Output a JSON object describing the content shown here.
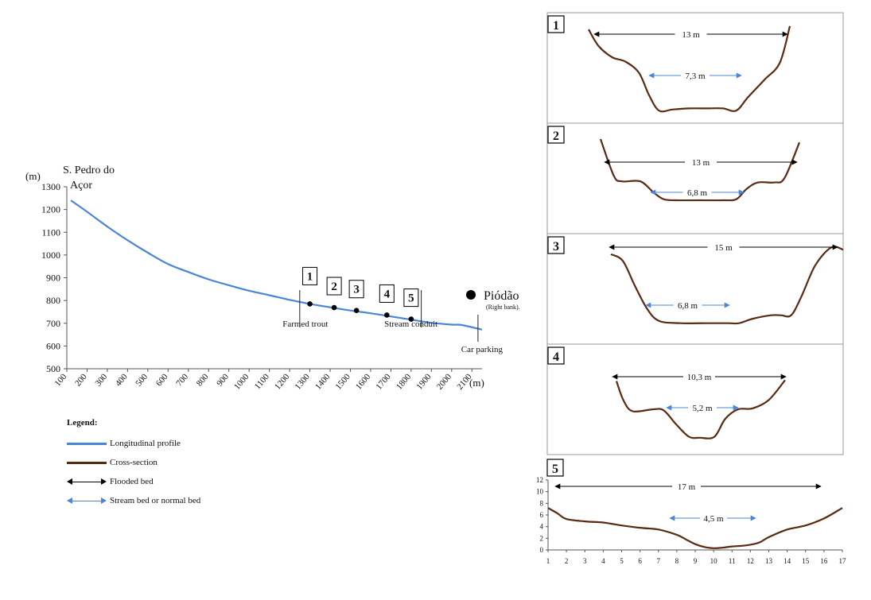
{
  "chart_data": [
    {
      "type": "line",
      "name": "longitudinal-profile",
      "y_unit_label": "(m)",
      "x_unit_label": "(m)",
      "start_label": "S. Pedro do Açor",
      "end_label": "Piódão",
      "end_sublabel": "(Right bank).",
      "ylim": [
        500,
        1300
      ],
      "xlim": [
        100,
        2150
      ],
      "y_ticks": [
        500,
        600,
        700,
        800,
        900,
        1000,
        1100,
        1200,
        1300
      ],
      "x_ticks": [
        100,
        200,
        300,
        400,
        500,
        600,
        700,
        800,
        900,
        1000,
        1100,
        1200,
        1300,
        1400,
        1500,
        1600,
        1700,
        1800,
        1900,
        2000,
        2100
      ],
      "series": [
        {
          "name": "Longitudinal profile",
          "color": "#4a86d6",
          "x": [
            120,
            200,
            300,
            400,
            500,
            600,
            700,
            800,
            900,
            1000,
            1100,
            1200,
            1300,
            1400,
            1500,
            1600,
            1700,
            1800,
            1900,
            2000,
            2050,
            2150
          ],
          "y": [
            1240,
            1190,
            1125,
            1065,
            1010,
            960,
            925,
            893,
            867,
            843,
            823,
            803,
            785,
            770,
            756,
            744,
            730,
            716,
            702,
            694,
            692,
            672
          ]
        }
      ],
      "points": [
        {
          "id": "1",
          "x": 1300,
          "y": 785
        },
        {
          "id": "2",
          "x": 1420,
          "y": 769
        },
        {
          "id": "3",
          "x": 1530,
          "y": 756
        },
        {
          "id": "4",
          "x": 1680,
          "y": 736
        },
        {
          "id": "5",
          "x": 1800,
          "y": 718
        }
      ],
      "annotations": [
        {
          "text": "Farmed trout",
          "x": 1250
        },
        {
          "text": "Stream conduit",
          "x": 1850
        },
        {
          "text": "Car parking",
          "x": 2130
        }
      ]
    },
    {
      "type": "line",
      "name": "cross-sections",
      "color": "#5a2a12",
      "sections": [
        {
          "id": "1",
          "flooded_label": "13 m",
          "normal_label": "7,3 m",
          "x": [
            1,
            1.6,
            2.4,
            3.2,
            4,
            4.6,
            5.2,
            6,
            7,
            8,
            9,
            9.8,
            10.5,
            11.5,
            12.4,
            13
          ],
          "y": [
            7.5,
            6,
            5,
            4.6,
            3.6,
            1.6,
            0.2,
            0.3,
            0.4,
            0.4,
            0.4,
            0.2,
            1.4,
            3,
            4.5,
            7.8
          ]
        },
        {
          "id": "2",
          "flooded_label": "13 m",
          "normal_label": "6,8 m",
          "x": [
            1,
            1.8,
            2.3,
            3.4,
            4.2,
            4.8,
            5.5,
            7,
            8.4,
            9.2,
            9.8,
            10.5,
            11.5,
            12.1,
            13
          ],
          "y": [
            7.5,
            4.2,
            3.7,
            3.7,
            2.7,
            2.1,
            2,
            2,
            2,
            2.1,
            3,
            3.6,
            3.6,
            4,
            7.2
          ]
        },
        {
          "id": "3",
          "flooded_label": "15 m",
          "normal_label": "6,8 m",
          "x": [
            1,
            1.6,
            2.2,
            2.8,
            3.4,
            4.5,
            5.8,
            6.9,
            7.4,
            8.1,
            9,
            9.5,
            10,
            10.5,
            11.2,
            12,
            12.6
          ],
          "y": [
            7.6,
            7,
            4.8,
            2.8,
            1.7,
            1.5,
            1.5,
            1.5,
            1.5,
            1.9,
            2.2,
            2.2,
            2.2,
            3.8,
            6.6,
            8.2,
            8
          ]
        },
        {
          "id": "4",
          "flooded_label": "10,3 m",
          "normal_label": "5,2 m",
          "x": [
            1,
            1.4,
            1.9,
            3,
            3.6,
            4.3,
            5,
            5.6,
            6.4,
            7,
            7.7,
            8.5,
            9.4,
            10.3
          ],
          "y": [
            7.2,
            5.1,
            4,
            4.2,
            4.1,
            2.6,
            1.3,
            1.2,
            1.3,
            3.2,
            4.2,
            4.3,
            5.2,
            7.3
          ]
        },
        {
          "id": "5",
          "flooded_label": "17 m",
          "normal_label": "4,5 m",
          "x": [
            1,
            1.5,
            2,
            3,
            4,
            5,
            6,
            7,
            8,
            8.5,
            9,
            9.5,
            10,
            10.5,
            11,
            11.5,
            12,
            12.5,
            13,
            14,
            15,
            16,
            17
          ],
          "y": [
            7.2,
            6.3,
            5.3,
            4.9,
            4.7,
            4.2,
            3.8,
            3.5,
            2.6,
            1.8,
            1,
            0.5,
            0.3,
            0.4,
            0.6,
            0.7,
            0.9,
            1.3,
            2.2,
            3.5,
            4.2,
            5.4,
            7.2
          ]
        }
      ],
      "section5_y_ticks": [
        0,
        2,
        4,
        6,
        8,
        10,
        12
      ],
      "section5_x_ticks": [
        1,
        2,
        3,
        4,
        5,
        6,
        7,
        8,
        9,
        10,
        11,
        12,
        13,
        14,
        15,
        16,
        17
      ]
    }
  ],
  "legend": {
    "title": "Legend:",
    "items": [
      {
        "label": "Longitudinal profile",
        "kind": "line",
        "color": "#4a86d6"
      },
      {
        "label": "Cross-section",
        "kind": "line",
        "color": "#5a2a12"
      },
      {
        "label": "Flooded bed",
        "kind": "arrow",
        "color": "#000000"
      },
      {
        "label": "Stream bed or normal bed",
        "kind": "arrow",
        "color": "#4a86d6"
      }
    ]
  }
}
